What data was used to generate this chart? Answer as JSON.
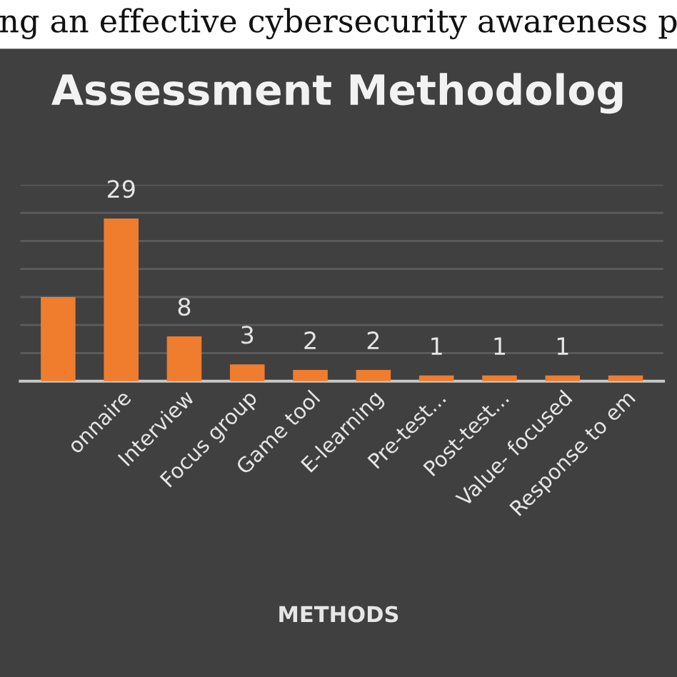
{
  "chart_data": {
    "type": "bar",
    "title": "Assessment Methodolog",
    "xlabel": "METHODS",
    "annotations": [
      "ng an effective cybersecurity awareness p"
    ],
    "categories": [
      null,
      "onnaire",
      "Interview",
      "Focus group",
      "Game tool",
      "E-learning",
      "Pre-test...",
      "Post-test...",
      "Value- focused",
      "Response to em"
    ],
    "values": [
      15,
      29,
      8,
      3,
      2,
      2,
      1,
      1,
      1,
      1
    ],
    "value_labels": [
      null,
      "29",
      "8",
      "3",
      "2",
      "2",
      "1",
      "1",
      "1",
      null
    ],
    "color": "#ef7d2d",
    "ylim": [
      0,
      35
    ],
    "yticks": [
      {
        "value": 5,
        "label": null
      },
      {
        "value": 10,
        "label": null
      },
      {
        "value": 15,
        "label": null
      },
      {
        "value": 20,
        "label": null
      },
      {
        "value": 25,
        "label": null
      },
      {
        "value": 30,
        "label": null
      },
      {
        "value": 35,
        "label": null
      }
    ],
    "grid": "y",
    "tick_labels": "x"
  }
}
